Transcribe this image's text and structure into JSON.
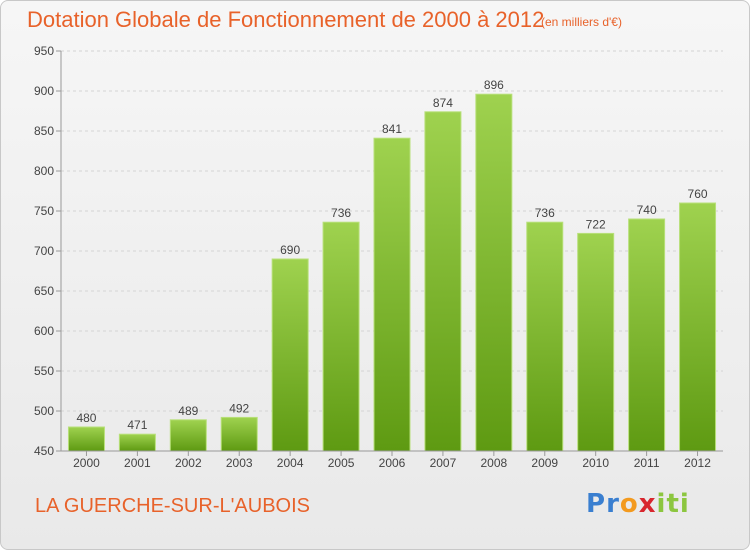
{
  "chart_data": {
    "type": "bar",
    "title": "Dotation Globale de Fonctionnement de 2000 à 2012",
    "subtitle": "(en milliers d'€)",
    "categories": [
      "2000",
      "2001",
      "2002",
      "2003",
      "2004",
      "2005",
      "2006",
      "2007",
      "2008",
      "2009",
      "2010",
      "2011",
      "2012"
    ],
    "values": [
      480,
      471,
      489,
      492,
      690,
      736,
      841,
      874,
      896,
      736,
      722,
      740,
      760
    ],
    "ylim": [
      450,
      950
    ],
    "yticks": [
      450,
      500,
      550,
      600,
      650,
      700,
      750,
      800,
      850,
      900,
      950
    ],
    "grid": true,
    "bar_color": "#8cc63f"
  },
  "footer": {
    "commune": "LA GUERCHE-SUR-L'AUBOIS",
    "logo_letters": [
      "P",
      "r",
      "o",
      "x",
      "i",
      "t",
      "i"
    ],
    "logo_colors": [
      "#3a7fd0",
      "#3a7fd0",
      "#f39a1e",
      "#d8262e",
      "#8cc63f",
      "#8cc63f",
      "#8cc63f"
    ]
  }
}
